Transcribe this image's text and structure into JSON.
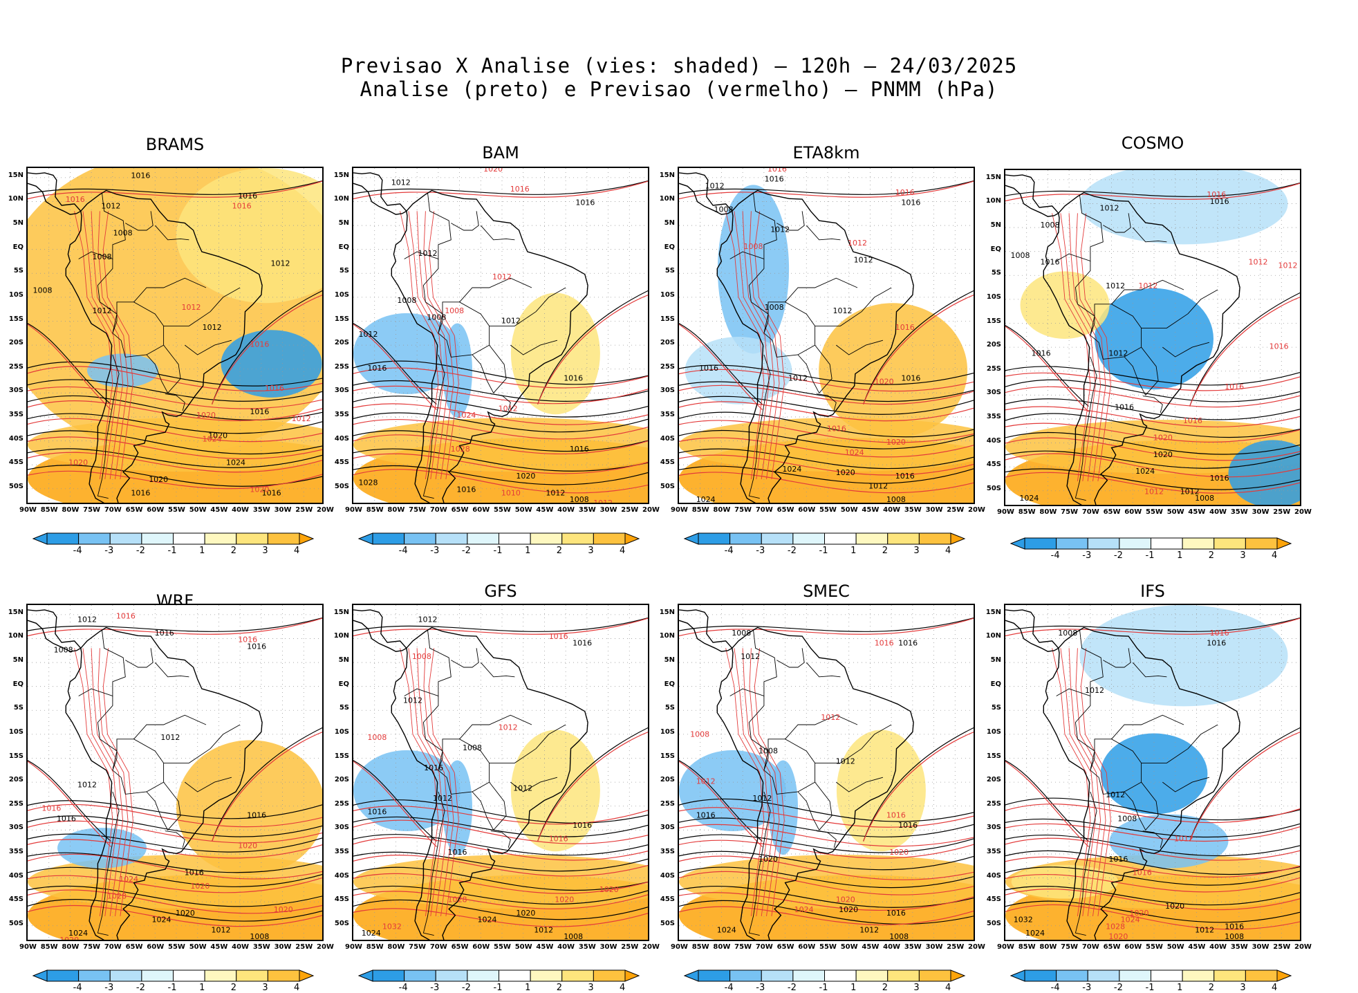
{
  "title": {
    "line1": "Previsao X Analise (vies: shaded) — 120h — 24/03/2025",
    "line2": "Analise (preto) e Previsao (vermelho) — PNMM (hPa)"
  },
  "colors": {
    "strong_neg": "#2d9de6",
    "neg3": "#78c2f3",
    "neg2": "#b6e0f8",
    "neg1": "#dff6fb",
    "pos1": "#fef8c0",
    "pos2": "#fde57d",
    "pos3": "#fdc23f",
    "strong_pos": "#fda40a",
    "analysis_contour": "#000000",
    "forecast_contour": "#e33a3a"
  },
  "lat_labels": [
    "15N",
    "10N",
    "5N",
    "EQ",
    "5S",
    "10S",
    "15S",
    "20S",
    "25S",
    "30S",
    "35S",
    "40S",
    "45S",
    "50S"
  ],
  "lon_labels": [
    "90W",
    "85W",
    "80W",
    "75W",
    "70W",
    "65W",
    "60W",
    "55W",
    "50W",
    "45W",
    "40W",
    "35W",
    "30W",
    "25W",
    "20W"
  ],
  "colorbar_labels": [
    "-4",
    "-3",
    "-2",
    "-1",
    "1",
    "2",
    "3",
    "4"
  ],
  "panels": [
    {
      "model": "BRAMS",
      "black_labels": [
        [
          "1016",
          0.38,
          0.03
        ],
        [
          "1016",
          0.74,
          0.09
        ],
        [
          "1012",
          0.28,
          0.12
        ],
        [
          "1008",
          0.32,
          0.2
        ],
        [
          "1008",
          0.25,
          0.27
        ],
        [
          "1012",
          0.85,
          0.29
        ],
        [
          "1012",
          0.62,
          0.48
        ],
        [
          "1016",
          0.78,
          0.73
        ],
        [
          "1020",
          0.64,
          0.8
        ],
        [
          "1024",
          0.7,
          0.88
        ],
        [
          "1020",
          0.44,
          0.93
        ],
        [
          "1016",
          0.38,
          0.97
        ],
        [
          "1016",
          0.82,
          0.97
        ],
        [
          "1008",
          0.05,
          0.37
        ],
        [
          "1012",
          0.25,
          0.43
        ]
      ],
      "red_labels": [
        [
          "1016",
          0.16,
          0.1
        ],
        [
          "1016",
          0.72,
          0.12
        ],
        [
          "1012",
          0.55,
          0.42
        ],
        [
          "1016",
          0.78,
          0.53
        ],
        [
          "1016",
          0.83,
          0.66
        ],
        [
          "1012",
          0.92,
          0.75
        ],
        [
          "1020",
          0.6,
          0.74
        ],
        [
          "1024",
          0.62,
          0.81
        ],
        [
          "1020",
          0.17,
          0.88
        ],
        [
          "1020",
          0.78,
          0.96
        ]
      ]
    },
    {
      "model": "BAM",
      "black_labels": [
        [
          "1012",
          0.16,
          0.05
        ],
        [
          "1016",
          0.78,
          0.11
        ],
        [
          "1012",
          0.25,
          0.26
        ],
        [
          "1008",
          0.18,
          0.4
        ],
        [
          "1008",
          0.28,
          0.45
        ],
        [
          "1012",
          0.53,
          0.46
        ],
        [
          "1012",
          0.05,
          0.5
        ],
        [
          "1016",
          0.08,
          0.6
        ],
        [
          "1016",
          0.74,
          0.63
        ],
        [
          "1016",
          0.76,
          0.84
        ],
        [
          "1020",
          0.58,
          0.92
        ],
        [
          "1016",
          0.38,
          0.96
        ],
        [
          "1012",
          0.68,
          0.97
        ],
        [
          "1008",
          0.76,
          0.99
        ],
        [
          "1028",
          0.05,
          0.94
        ]
      ],
      "red_labels": [
        [
          "1020",
          0.47,
          0.01
        ],
        [
          "1016",
          0.56,
          0.07
        ],
        [
          "1012",
          0.5,
          0.33
        ],
        [
          "1008",
          0.34,
          0.43
        ],
        [
          "1012",
          0.52,
          0.72
        ],
        [
          "1024",
          0.38,
          0.74
        ],
        [
          "1028",
          0.36,
          0.84
        ],
        [
          "1010",
          0.53,
          0.97
        ],
        [
          "1012",
          0.84,
          1.0
        ]
      ]
    },
    {
      "model": "ETA8km",
      "black_labels": [
        [
          "1016",
          0.32,
          0.04
        ],
        [
          "1012",
          0.12,
          0.06
        ],
        [
          "1016",
          0.78,
          0.11
        ],
        [
          "1008",
          0.15,
          0.13
        ],
        [
          "1012",
          0.34,
          0.19
        ],
        [
          "1012",
          0.62,
          0.28
        ],
        [
          "1008",
          0.32,
          0.42
        ],
        [
          "1012",
          0.55,
          0.43
        ],
        [
          "1012",
          0.4,
          0.63
        ],
        [
          "1016",
          0.1,
          0.6
        ],
        [
          "1016",
          0.78,
          0.63
        ],
        [
          "1024",
          0.38,
          0.9
        ],
        [
          "1020",
          0.56,
          0.91
        ],
        [
          "1016",
          0.76,
          0.92
        ],
        [
          "1012",
          0.67,
          0.95
        ],
        [
          "1008",
          0.73,
          0.99
        ],
        [
          "1024",
          0.09,
          0.99
        ]
      ],
      "red_labels": [
        [
          "1016",
          0.33,
          0.01
        ],
        [
          "1016",
          0.76,
          0.08
        ],
        [
          "1012",
          0.6,
          0.23
        ],
        [
          "1008",
          0.25,
          0.24
        ],
        [
          "1016",
          0.76,
          0.48
        ],
        [
          "1020",
          0.69,
          0.64
        ],
        [
          "1016",
          0.53,
          0.78
        ],
        [
          "1020",
          0.73,
          0.82
        ],
        [
          "1024",
          0.59,
          0.85
        ]
      ]
    },
    {
      "model": "COSMO",
      "black_labels": [
        [
          "1016",
          0.72,
          0.1
        ],
        [
          "1012",
          0.35,
          0.12
        ],
        [
          "1008",
          0.15,
          0.17
        ],
        [
          "1008",
          0.05,
          0.26
        ],
        [
          "1016",
          0.15,
          0.28
        ],
        [
          "1012",
          0.37,
          0.35
        ],
        [
          "1016",
          0.12,
          0.55
        ],
        [
          "1012",
          0.38,
          0.55
        ],
        [
          "1016",
          0.4,
          0.71
        ],
        [
          "1020",
          0.53,
          0.85
        ],
        [
          "1024",
          0.47,
          0.9
        ],
        [
          "1016",
          0.72,
          0.92
        ],
        [
          "1012",
          0.62,
          0.96
        ],
        [
          "1008",
          0.67,
          0.98
        ],
        [
          "1024",
          0.08,
          0.98
        ]
      ],
      "red_labels": [
        [
          "1016",
          0.71,
          0.08
        ],
        [
          "1012",
          0.85,
          0.28
        ],
        [
          "1012",
          0.95,
          0.29
        ],
        [
          "1012",
          0.48,
          0.35
        ],
        [
          "1016",
          0.92,
          0.53
        ],
        [
          "1016",
          0.77,
          0.65
        ],
        [
          "1020",
          0.53,
          0.8
        ],
        [
          "1016",
          0.63,
          0.75
        ],
        [
          "1012",
          0.5,
          0.96
        ]
      ]
    },
    {
      "model": "WRF",
      "black_labels": [
        [
          "1012",
          0.2,
          0.05
        ],
        [
          "1016",
          0.46,
          0.09
        ],
        [
          "1016",
          0.77,
          0.13
        ],
        [
          "1008",
          0.12,
          0.14
        ],
        [
          "1012",
          0.48,
          0.4
        ],
        [
          "1012",
          0.2,
          0.54
        ],
        [
          "1016",
          0.13,
          0.64
        ],
        [
          "1016",
          0.77,
          0.63
        ],
        [
          "1016",
          0.56,
          0.8
        ],
        [
          "1020",
          0.53,
          0.92
        ],
        [
          "1024",
          0.45,
          0.94
        ],
        [
          "1012",
          0.65,
          0.97
        ],
        [
          "1008",
          0.78,
          0.99
        ],
        [
          "1024",
          0.17,
          0.98
        ]
      ],
      "red_labels": [
        [
          "1016",
          0.33,
          0.04
        ],
        [
          "1016",
          0.74,
          0.11
        ],
        [
          "1016",
          0.08,
          0.61
        ],
        [
          "1020",
          0.74,
          0.72
        ],
        [
          "1020",
          0.58,
          0.84
        ],
        [
          "1024",
          0.34,
          0.82
        ],
        [
          "1028",
          0.3,
          0.87
        ],
        [
          "1020",
          0.86,
          0.91
        ],
        [
          "1020",
          0.14,
          1.0
        ]
      ]
    },
    {
      "model": "GFS",
      "black_labels": [
        [
          "1012",
          0.25,
          0.05
        ],
        [
          "1016",
          0.77,
          0.12
        ],
        [
          "1012",
          0.2,
          0.29
        ],
        [
          "1008",
          0.4,
          0.43
        ],
        [
          "1016",
          0.27,
          0.49
        ],
        [
          "1012",
          0.57,
          0.55
        ],
        [
          "1012",
          0.3,
          0.58
        ],
        [
          "1016",
          0.08,
          0.62
        ],
        [
          "1016",
          0.77,
          0.66
        ],
        [
          "1016",
          0.35,
          0.74
        ],
        [
          "1020",
          0.58,
          0.92
        ],
        [
          "1024",
          0.45,
          0.94
        ],
        [
          "1012",
          0.64,
          0.97
        ],
        [
          "1008",
          0.74,
          0.99
        ],
        [
          "1024",
          0.06,
          0.98
        ]
      ],
      "red_labels": [
        [
          "1016",
          0.69,
          0.1
        ],
        [
          "1008",
          0.23,
          0.16
        ],
        [
          "1012",
          0.52,
          0.37
        ],
        [
          "1008",
          0.08,
          0.4
        ],
        [
          "1016",
          0.69,
          0.7
        ],
        [
          "1020",
          0.86,
          0.85
        ],
        [
          "1020",
          0.71,
          0.88
        ],
        [
          "1028",
          0.35,
          0.88
        ],
        [
          "1032",
          0.13,
          0.96
        ]
      ]
    },
    {
      "model": "SMEC",
      "black_labels": [
        [
          "1008",
          0.21,
          0.09
        ],
        [
          "1016",
          0.77,
          0.12
        ],
        [
          "1012",
          0.24,
          0.16
        ],
        [
          "1008",
          0.3,
          0.44
        ],
        [
          "1012",
          0.56,
          0.47
        ],
        [
          "1012",
          0.28,
          0.58
        ],
        [
          "1016",
          0.09,
          0.63
        ],
        [
          "1016",
          0.77,
          0.66
        ],
        [
          "1020",
          0.3,
          0.76
        ],
        [
          "1016",
          0.73,
          0.92
        ],
        [
          "1020",
          0.57,
          0.91
        ],
        [
          "1012",
          0.64,
          0.97
        ],
        [
          "1008",
          0.74,
          0.99
        ],
        [
          "1024",
          0.16,
          0.97
        ]
      ],
      "red_labels": [
        [
          "1016",
          0.69,
          0.12
        ],
        [
          "1008",
          0.07,
          0.39
        ],
        [
          "1012",
          0.51,
          0.34
        ],
        [
          "1012",
          0.09,
          0.53
        ],
        [
          "1016",
          0.73,
          0.63
        ],
        [
          "1020",
          0.74,
          0.74
        ],
        [
          "1020",
          0.56,
          0.88
        ],
        [
          "1024",
          0.42,
          0.91
        ]
      ]
    },
    {
      "model": "IFS",
      "black_labels": [
        [
          "1008",
          0.21,
          0.09
        ],
        [
          "1016",
          0.71,
          0.12
        ],
        [
          "1012",
          0.3,
          0.26
        ],
        [
          "1012",
          0.37,
          0.57
        ],
        [
          "1008",
          0.41,
          0.64
        ],
        [
          "1016",
          0.38,
          0.76
        ],
        [
          "1020",
          0.57,
          0.9
        ],
        [
          "1016",
          0.77,
          0.96
        ],
        [
          "1012",
          0.67,
          0.97
        ],
        [
          "1008",
          0.77,
          0.99
        ],
        [
          "1032",
          0.06,
          0.94
        ],
        [
          "1024",
          0.1,
          0.98
        ]
      ],
      "red_labels": [
        [
          "1016",
          0.72,
          0.09
        ],
        [
          "1012",
          0.6,
          0.7
        ],
        [
          "1016",
          0.46,
          0.8
        ],
        [
          "1020",
          0.45,
          0.92
        ],
        [
          "1024",
          0.42,
          0.94
        ],
        [
          "1028",
          0.37,
          0.96
        ],
        [
          "1020",
          0.38,
          0.99
        ]
      ]
    }
  ]
}
